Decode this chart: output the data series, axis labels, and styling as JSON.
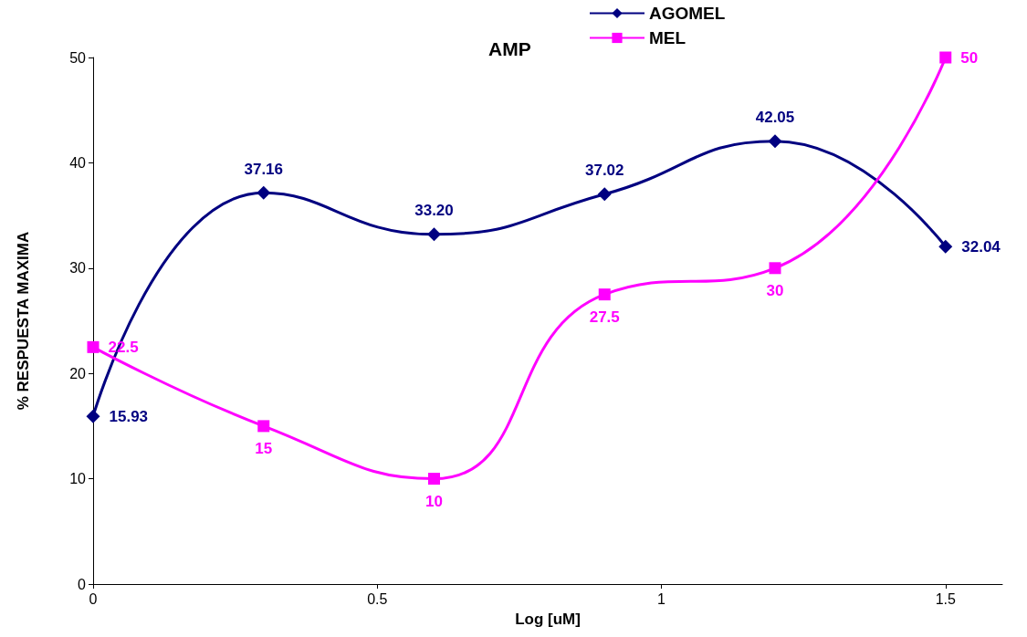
{
  "chart_data": {
    "type": "line",
    "title": "AMP",
    "xlabel": "Log [uM]",
    "ylabel": "% RESPUESTA MAXIMA",
    "x": [
      0,
      0.3,
      0.6,
      0.9,
      1.2,
      1.5
    ],
    "series": [
      {
        "name": "AGOMEL",
        "color": "#000080",
        "marker": "diamond",
        "values": [
          15.93,
          37.16,
          33.2,
          37.02,
          42.05,
          32.04
        ],
        "value_labels": [
          "15.93",
          "37.16",
          "33.20",
          "37.02",
          "42.05",
          "32.04"
        ]
      },
      {
        "name": "MEL",
        "color": "#ff00ff",
        "marker": "square",
        "values": [
          22.5,
          15,
          10,
          27.5,
          30,
          50
        ],
        "value_labels": [
          "22.5",
          "15",
          "10",
          "27.5",
          "30",
          "50"
        ]
      }
    ],
    "xlim": [
      0,
      1.6
    ],
    "xticks": [
      0,
      0.5,
      1,
      1.5
    ],
    "ylim": [
      0,
      50
    ],
    "yticks": [
      0,
      10,
      20,
      30,
      40,
      50
    ],
    "grid": false,
    "legend": "top",
    "line_style": "solid"
  }
}
